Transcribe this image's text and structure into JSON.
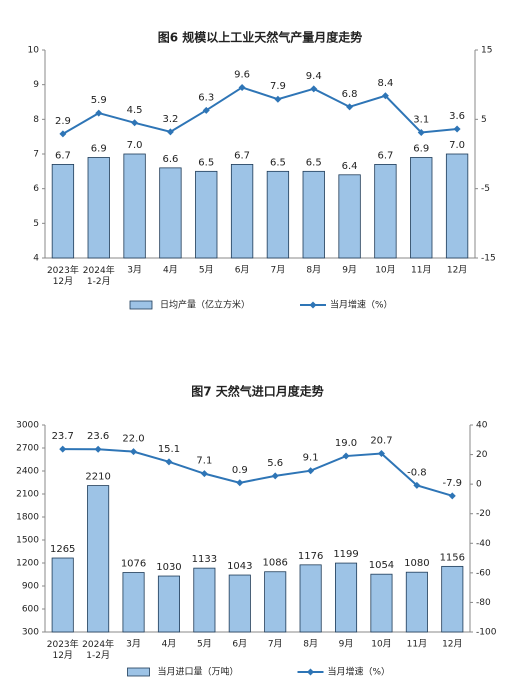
{
  "chart_data": [
    {
      "type": "combo",
      "title": "图6 规模以上工业天然气产量月度走势",
      "categories": [
        "2023年\n12月",
        "2024年\n1-2月",
        "3月",
        "4月",
        "5月",
        "6月",
        "7月",
        "8月",
        "9月",
        "10月",
        "11月",
        "12月"
      ],
      "ylim": [
        4,
        10
      ],
      "yticks": [
        4,
        5,
        6,
        7,
        8,
        9,
        10
      ],
      "y2lim": [
        -15,
        15
      ],
      "y2ticks": [
        -15,
        -5,
        5,
        15
      ],
      "series": [
        {
          "name": "日均产量（亿立方米）",
          "type": "bar",
          "color": "#9dc3e6",
          "values": [
            6.7,
            6.9,
            7.0,
            6.6,
            6.5,
            6.7,
            6.5,
            6.5,
            6.4,
            6.7,
            6.9,
            7.0
          ],
          "value_labels": [
            "6.7",
            "6.9",
            "7.0",
            "6.6",
            "6.5",
            "6.7",
            "6.5",
            "6.5",
            "6.4",
            "6.7",
            "6.9",
            "7.0"
          ]
        },
        {
          "name": "当月增速（%）",
          "type": "line",
          "axis": "y2",
          "color": "#2e75b6",
          "values": [
            2.9,
            5.9,
            4.5,
            3.2,
            6.3,
            9.6,
            7.9,
            9.4,
            6.8,
            8.4,
            3.1,
            3.6
          ]
        }
      ]
    },
    {
      "type": "combo",
      "title": "图7 天然气进口月度走势",
      "categories": [
        "2023年\n12月",
        "2024年\n1-2月",
        "3月",
        "4月",
        "5月",
        "6月",
        "7月",
        "8月",
        "9月",
        "10月",
        "11月",
        "12月"
      ],
      "ylim": [
        300,
        3000
      ],
      "yticks": [
        300,
        600,
        900,
        1200,
        1500,
        1800,
        2100,
        2400,
        2700,
        3000
      ],
      "y2lim": [
        -100,
        40
      ],
      "y2ticks": [
        -100,
        -80,
        -60,
        -40,
        -20,
        0,
        20,
        40
      ],
      "series": [
        {
          "name": "当月进口量（万吨）",
          "type": "bar",
          "color": "#9dc3e6",
          "values": [
            1265,
            2210,
            1076,
            1030,
            1133,
            1043,
            1086,
            1176,
            1199,
            1054,
            1080,
            1156
          ]
        },
        {
          "name": "当月增速（%）",
          "type": "line",
          "axis": "y2",
          "color": "#2e75b6",
          "values": [
            23.7,
            23.6,
            22.0,
            15.1,
            7.1,
            0.9,
            5.6,
            9.1,
            19.0,
            20.7,
            -0.8,
            -7.9
          ],
          "value_labels": [
            "23.7",
            "23.6",
            "22.0",
            "15.1",
            "7.1",
            "0.9",
            "5.6",
            "9.1",
            "19.0",
            "20.7",
            "-0.8",
            "-7.9"
          ]
        }
      ]
    }
  ]
}
